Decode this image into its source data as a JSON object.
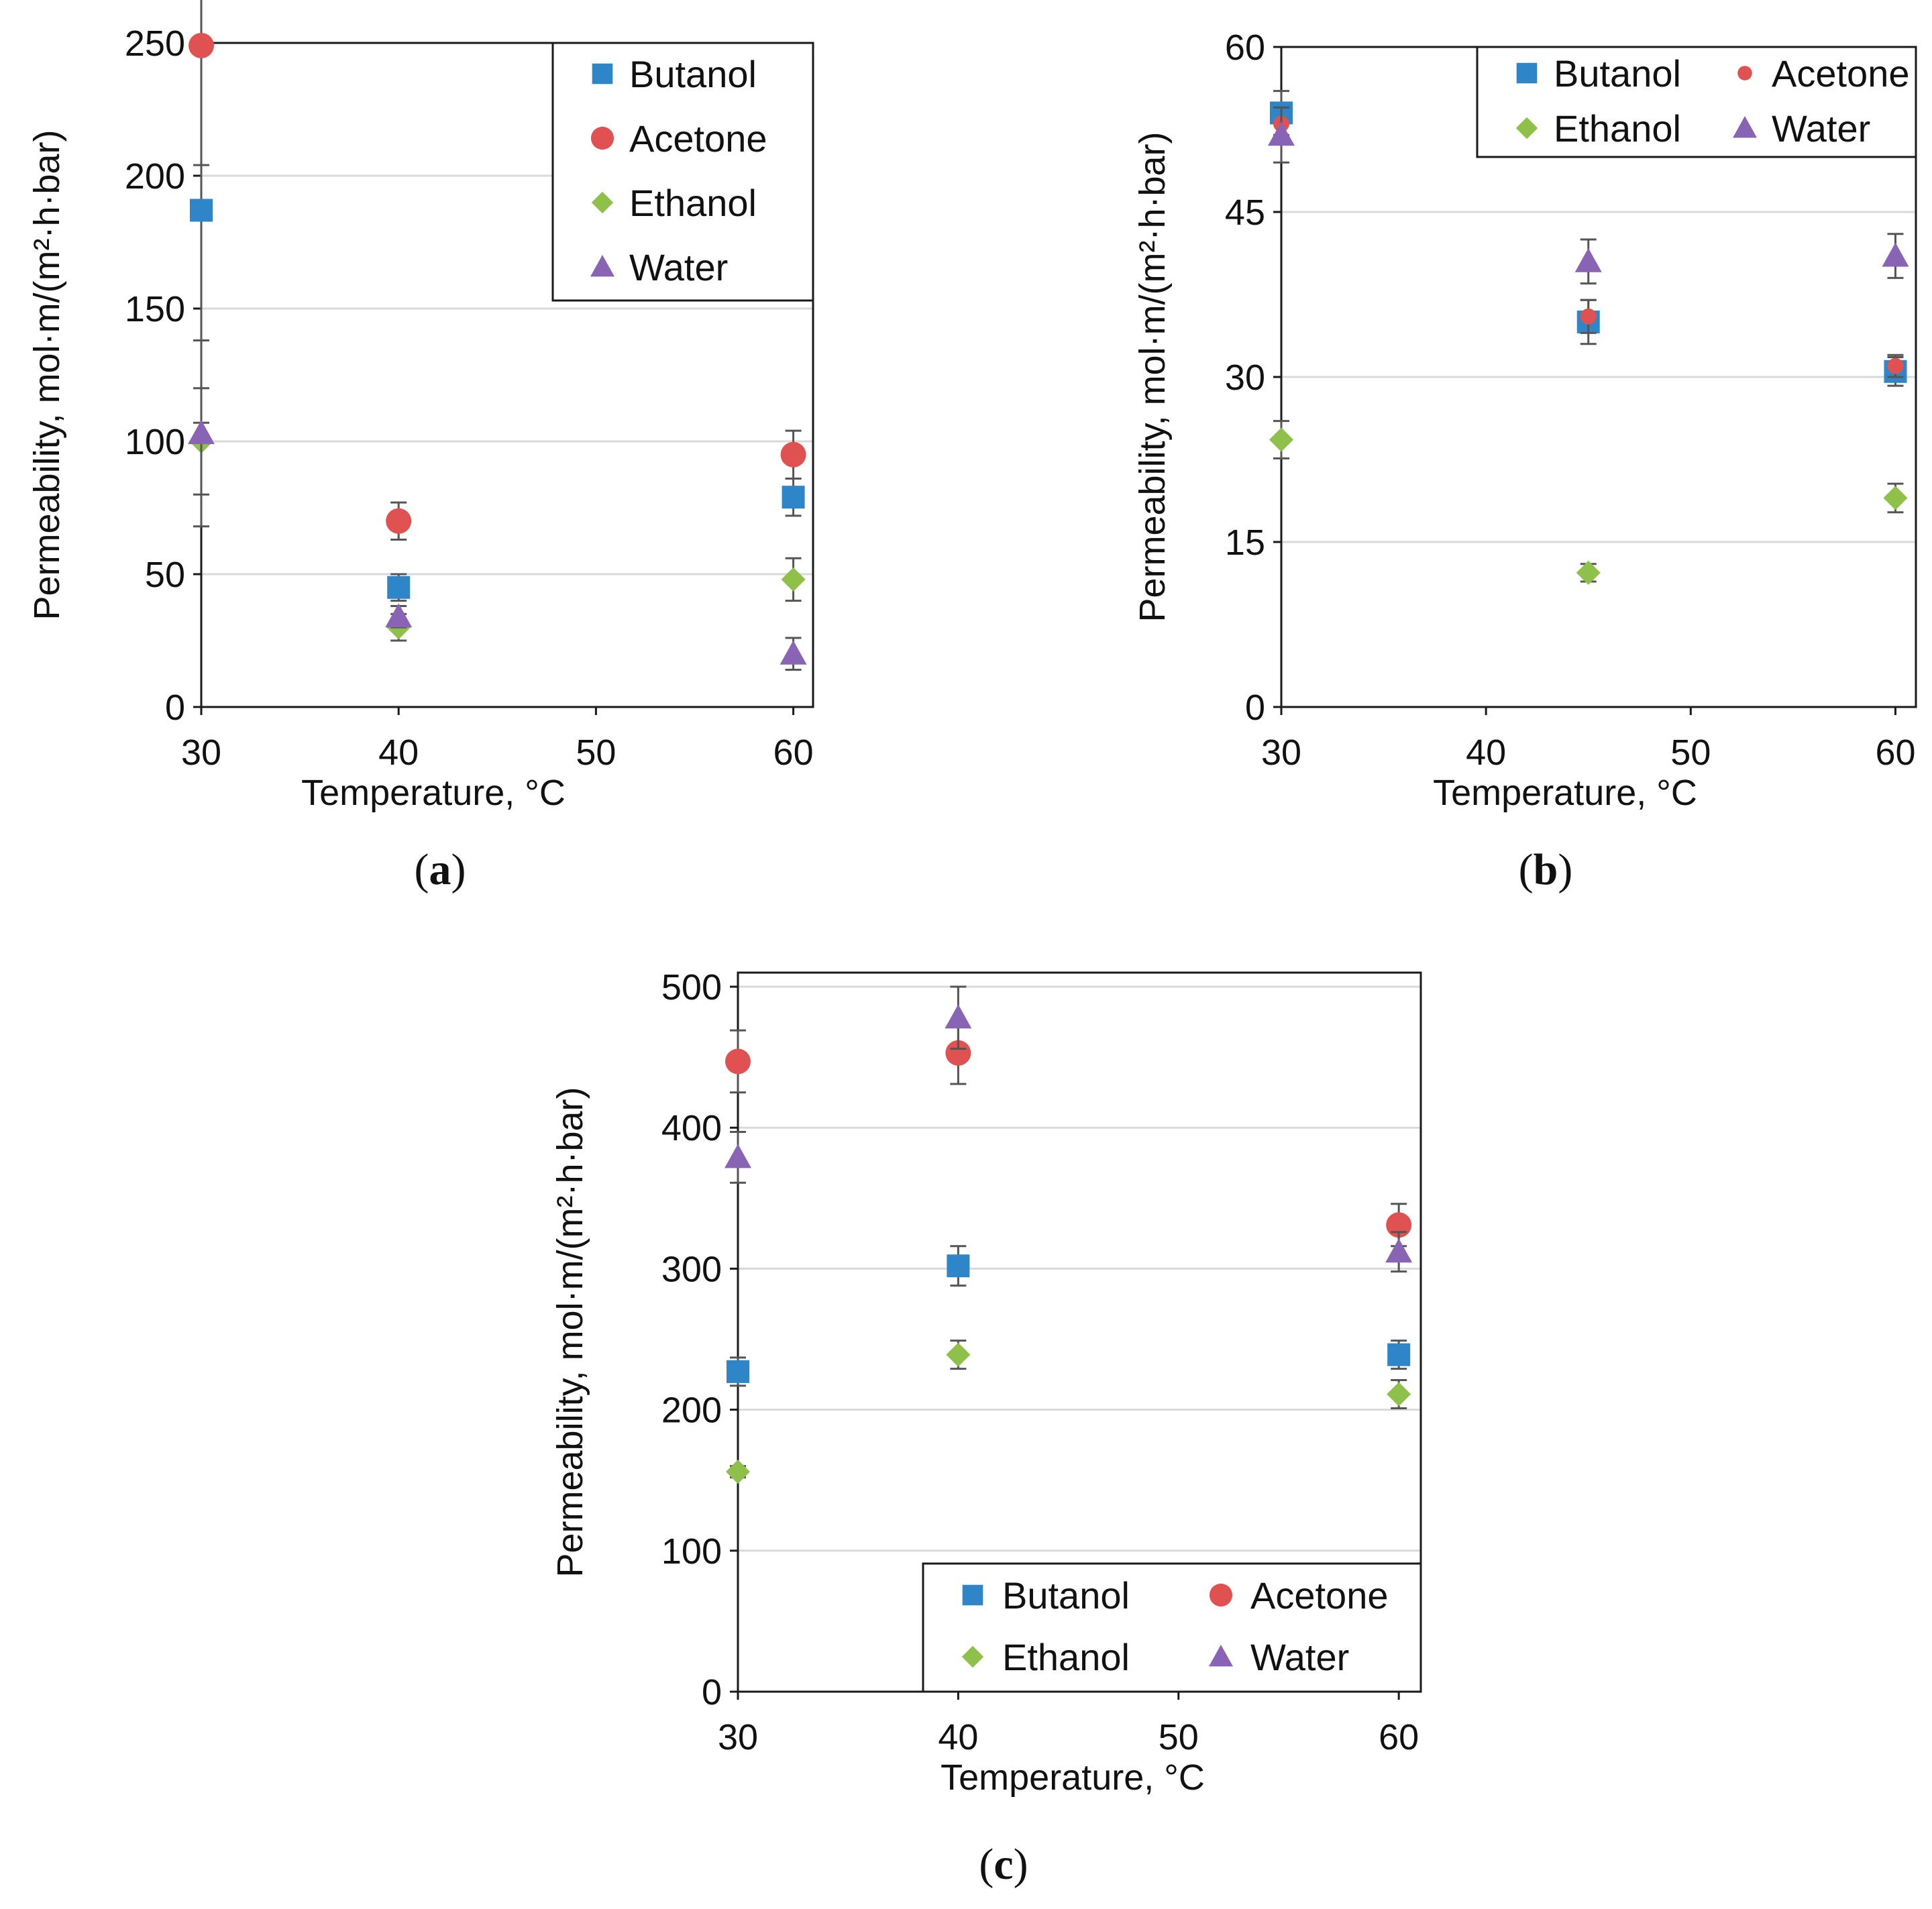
{
  "chart_data": [
    {
      "type": "scatter",
      "panel_label": "a",
      "xlabel": "Temperature, °C",
      "ylabel": "Permeability, mol·m/(m²·h·bar)",
      "xlim": [
        30,
        61
      ],
      "ylim": [
        0,
        250
      ],
      "x_ticks": [
        "30",
        "40",
        "50",
        "60"
      ],
      "y_ticks": [
        "0",
        "50",
        "100",
        "150",
        "200",
        "250"
      ],
      "grid": true,
      "legend": {
        "placement": "top-right",
        "columns": 1
      },
      "series": [
        {
          "name": "Butanol",
          "marker": "square",
          "color": "#2e86c8",
          "points": [
            {
              "x": 30,
              "y": 187,
              "err": 80
            },
            {
              "x": 40,
              "y": 45,
              "err": 5
            },
            {
              "x": 60,
              "y": 79,
              "err": 7
            }
          ]
        },
        {
          "name": "Acetone",
          "marker": "circle",
          "color": "#e05252",
          "points": [
            {
              "x": 30,
              "y": 249,
              "err": 45
            },
            {
              "x": 40,
              "y": 70,
              "err": 7
            },
            {
              "x": 60,
              "y": 95,
              "err": 9
            }
          ]
        },
        {
          "name": "Ethanol",
          "marker": "diamond",
          "color": "#8fc04a",
          "points": [
            {
              "x": 30,
              "y": 100,
              "err": 20
            },
            {
              "x": 40,
              "y": 30,
              "err": 5
            },
            {
              "x": 60,
              "y": 48,
              "err": 8
            }
          ]
        },
        {
          "name": "Water",
          "marker": "triangle",
          "color": "#8a64b4",
          "points": [
            {
              "x": 30,
              "y": 103,
              "err": 35
            },
            {
              "x": 40,
              "y": 34,
              "err": 4
            },
            {
              "x": 60,
              "y": 20,
              "err": 6
            }
          ]
        }
      ]
    },
    {
      "type": "scatter",
      "panel_label": "b",
      "xlabel": "Temperature, °C",
      "ylabel": "Permeability, mol·m/(m²·h·bar)",
      "xlim": [
        30,
        61
      ],
      "ylim": [
        0,
        60
      ],
      "x_ticks": [
        "30",
        "40",
        "50",
        "60"
      ],
      "y_ticks": [
        "0",
        "15",
        "30",
        "45",
        "60"
      ],
      "grid": true,
      "legend": {
        "placement": "top-right",
        "columns": 2
      },
      "series": [
        {
          "name": "Butanol",
          "marker": "square",
          "color": "#2e86c8",
          "points": [
            {
              "x": 30,
              "y": 54,
              "err": 2
            },
            {
              "x": 45,
              "y": 35,
              "err": 2
            },
            {
              "x": 60,
              "y": 30.5,
              "err": 1.3
            }
          ]
        },
        {
          "name": "Acetone",
          "marker": "circle-small",
          "color": "#e05252",
          "points": [
            {
              "x": 30,
              "y": 53,
              "err": 1.5
            },
            {
              "x": 45,
              "y": 35.5,
              "err": 1.5
            },
            {
              "x": 60,
              "y": 31,
              "err": 1
            }
          ]
        },
        {
          "name": "Ethanol",
          "marker": "diamond",
          "color": "#8fc04a",
          "points": [
            {
              "x": 30,
              "y": 24.3,
              "err": 1.7
            },
            {
              "x": 45,
              "y": 12.2,
              "err": 0.8
            },
            {
              "x": 60,
              "y": 19,
              "err": 1.3
            }
          ]
        },
        {
          "name": "Water",
          "marker": "triangle",
          "color": "#8a64b4",
          "points": [
            {
              "x": 30,
              "y": 52,
              "err": 2.5
            },
            {
              "x": 45,
              "y": 40.5,
              "err": 2
            },
            {
              "x": 60,
              "y": 41,
              "err": 2
            }
          ]
        }
      ]
    },
    {
      "type": "scatter",
      "panel_label": "c",
      "xlabel": "Temperature, °C",
      "ylabel": "Permeability, mol·m/(m²·h·bar)",
      "xlim": [
        30,
        61
      ],
      "ylim": [
        0,
        510
      ],
      "x_ticks": [
        "30",
        "40",
        "50",
        "60"
      ],
      "y_ticks": [
        "0",
        "100",
        "200",
        "300",
        "400",
        "500"
      ],
      "grid": true,
      "legend": {
        "placement": "bottom-right",
        "columns": 2
      },
      "series": [
        {
          "name": "Butanol",
          "marker": "square",
          "color": "#2e86c8",
          "points": [
            {
              "x": 30,
              "y": 227,
              "err": 10
            },
            {
              "x": 40,
              "y": 302,
              "err": 14
            },
            {
              "x": 60,
              "y": 239,
              "err": 10
            }
          ]
        },
        {
          "name": "Acetone",
          "marker": "circle",
          "color": "#e05252",
          "points": [
            {
              "x": 30,
              "y": 447,
              "err": 22
            },
            {
              "x": 40,
              "y": 453,
              "err": 22
            },
            {
              "x": 60,
              "y": 331,
              "err": 15
            }
          ]
        },
        {
          "name": "Ethanol",
          "marker": "diamond",
          "color": "#8fc04a",
          "points": [
            {
              "x": 30,
              "y": 156,
              "err": 4
            },
            {
              "x": 40,
              "y": 239,
              "err": 10
            },
            {
              "x": 60,
              "y": 211,
              "err": 10
            }
          ]
        },
        {
          "name": "Water",
          "marker": "triangle",
          "color": "#8a64b4",
          "points": [
            {
              "x": 30,
              "y": 379,
              "err": 18
            },
            {
              "x": 40,
              "y": 478,
              "err": 22
            },
            {
              "x": 60,
              "y": 312,
              "err": 14
            }
          ]
        }
      ]
    }
  ]
}
